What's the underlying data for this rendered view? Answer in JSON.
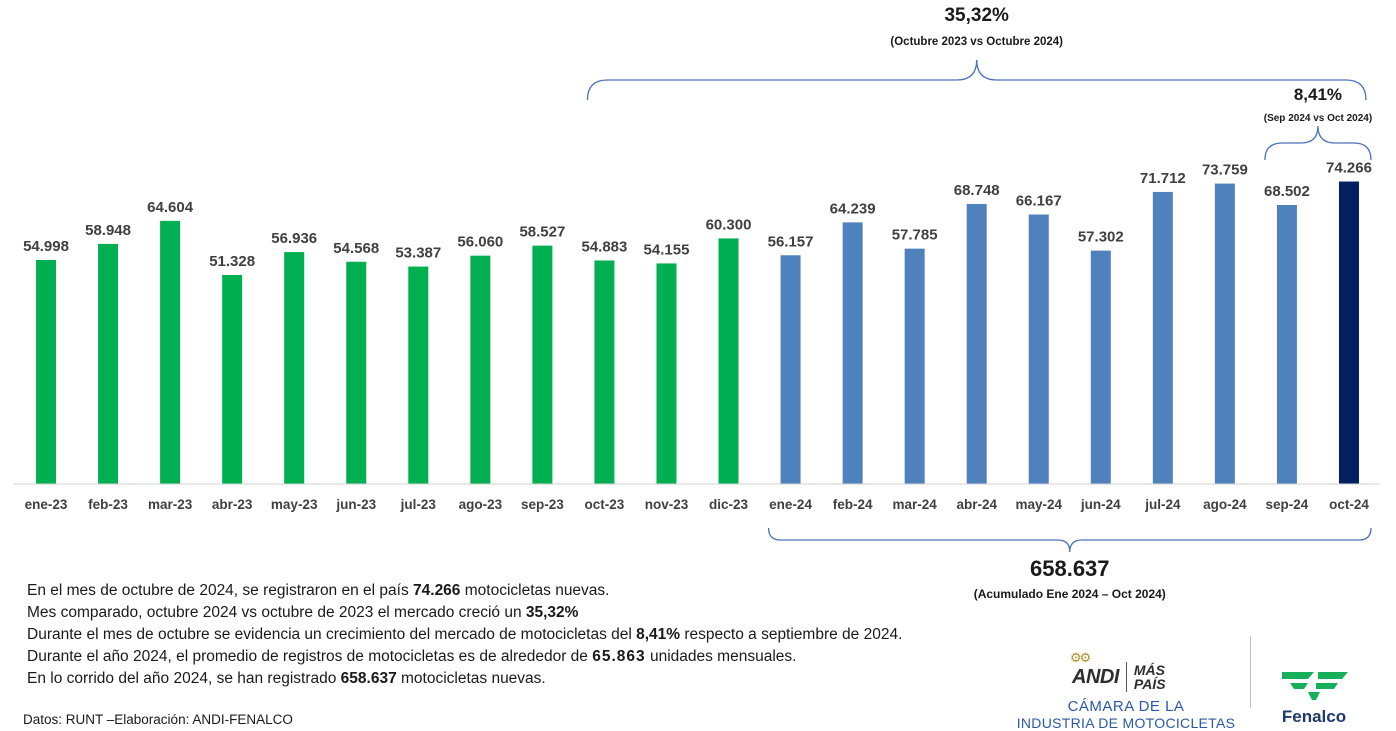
{
  "chart_data": {
    "type": "bar",
    "categories": [
      "ene-23",
      "feb-23",
      "mar-23",
      "abr-23",
      "may-23",
      "jun-23",
      "jul-23",
      "ago-23",
      "sep-23",
      "oct-23",
      "nov-23",
      "dic-23",
      "ene-24",
      "feb-24",
      "mar-24",
      "abr-24",
      "may-24",
      "jun-24",
      "jul-24",
      "ago-24",
      "sep-24",
      "oct-24"
    ],
    "values": [
      54998,
      58948,
      64604,
      51328,
      56936,
      54568,
      53387,
      56060,
      58527,
      54883,
      54155,
      60300,
      56157,
      64239,
      57785,
      68748,
      66167,
      57302,
      71712,
      73759,
      68502,
      74266
    ],
    "value_labels": [
      "54.998",
      "58.948",
      "64.604",
      "51.328",
      "56.936",
      "54.568",
      "53.387",
      "56.060",
      "58.527",
      "54.883",
      "54.155",
      "60.300",
      "56.157",
      "64.239",
      "57.785",
      "68.748",
      "66.167",
      "57.302",
      "71.712",
      "73.759",
      "68.502",
      "74.266"
    ],
    "bar_colors": [
      "#00b050",
      "#00b050",
      "#00b050",
      "#00b050",
      "#00b050",
      "#00b050",
      "#00b050",
      "#00b050",
      "#00b050",
      "#00b050",
      "#00b050",
      "#00b050",
      "#4f81bd",
      "#4f81bd",
      "#4f81bd",
      "#4f81bd",
      "#4f81bd",
      "#4f81bd",
      "#4f81bd",
      "#4f81bd",
      "#4f81bd",
      "#002060"
    ],
    "ylim": [
      0,
      80000
    ],
    "title": "",
    "xlabel": "",
    "ylabel": "",
    "grid": false,
    "annotations": {
      "yoy": {
        "value": "35,32%",
        "label": "(Octubre 2023 vs Octubre 2024)",
        "from": "oct-23",
        "to": "oct-24"
      },
      "mom": {
        "value": "8,41%",
        "label": "(Sep 2024 vs Oct 2024)",
        "from": "sep-24",
        "to": "oct-24"
      },
      "ytd": {
        "value": "658.637",
        "label": "(Acumulado Ene 2024 – Oct 2024)",
        "from": "ene-24",
        "to": "oct-24"
      }
    }
  },
  "notes": {
    "line1": {
      "a": "En el mes de octubre de 2024, se registraron en el país ",
      "b": "74.266",
      "c": " motocicletas nuevas."
    },
    "line2": {
      "a": "Mes comparado, octubre 2024 vs octubre de 2023 el mercado creció un ",
      "b": "35,32%"
    },
    "line3": {
      "a": "Durante el mes de octubre se evidencia un crecimiento del mercado de motocicletas del ",
      "b": "8,41%",
      "c": " respecto a septiembre de 2024."
    },
    "line4": {
      "a": "Durante el año 2024, el promedio de  registros de motocicletas es de alrededor de ",
      "b": "65.863",
      "c": " unidades mensuales."
    },
    "line5": {
      "a": "En lo corrido del año 2024, se han registrado ",
      "b": "658.637",
      "c": " motocicletas nuevas."
    }
  },
  "source": "Datos: RUNT –Elaboración: ANDI-FENALCO",
  "logos": {
    "andi": "ANDI",
    "mas": "MÁS",
    "pais": "PAÍS",
    "camara_line1": "CÁMARA DE LA",
    "camara_line2": "INDUSTRIA DE MOTOCICLETAS",
    "fenalco": "Fenalco",
    "andi_color": "#2a5aa5",
    "fenalco_green": "#16b05a",
    "fenalco_navy": "#1f3a6e"
  }
}
